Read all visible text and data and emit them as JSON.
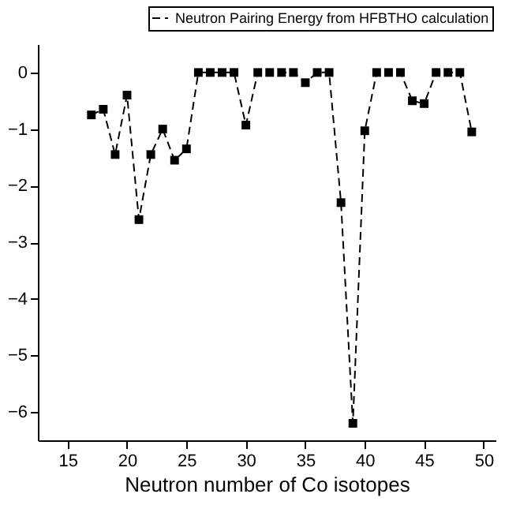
{
  "chart_data": {
    "type": "line",
    "xlabel": "Neutron number of Co isotopes",
    "x": [
      17,
      18,
      19,
      20,
      21,
      22,
      23,
      24,
      25,
      26,
      27,
      28,
      29,
      30,
      31,
      32,
      33,
      34,
      35,
      36,
      37,
      38,
      39,
      40,
      41,
      42,
      43,
      44,
      45,
      46,
      47,
      48,
      49
    ],
    "series": [
      {
        "name": "Neutron Pairing Energy from HFBTHO calculation",
        "color": "#000000",
        "values": [
          -0.75,
          -0.65,
          -1.45,
          -0.4,
          -2.6,
          -1.45,
          -1.0,
          -1.55,
          -1.35,
          0,
          0,
          0,
          0,
          -0.93,
          0,
          0,
          0,
          0,
          -0.18,
          0,
          0,
          -2.3,
          -6.2,
          -1.03,
          0,
          0,
          0,
          -0.5,
          -0.55,
          0,
          0,
          0,
          -1.05
        ]
      }
    ],
    "xlim": [
      12.5,
      51
    ],
    "xticks": [
      15,
      20,
      25,
      30,
      35,
      40,
      45,
      50
    ],
    "ylim": [
      -6.5,
      0.5
    ],
    "yticks": [
      -6,
      -5,
      -4,
      -3,
      -2,
      -1,
      0
    ],
    "marker": "square",
    "line_style": "dashed",
    "legend": "top right",
    "grid": false
  }
}
